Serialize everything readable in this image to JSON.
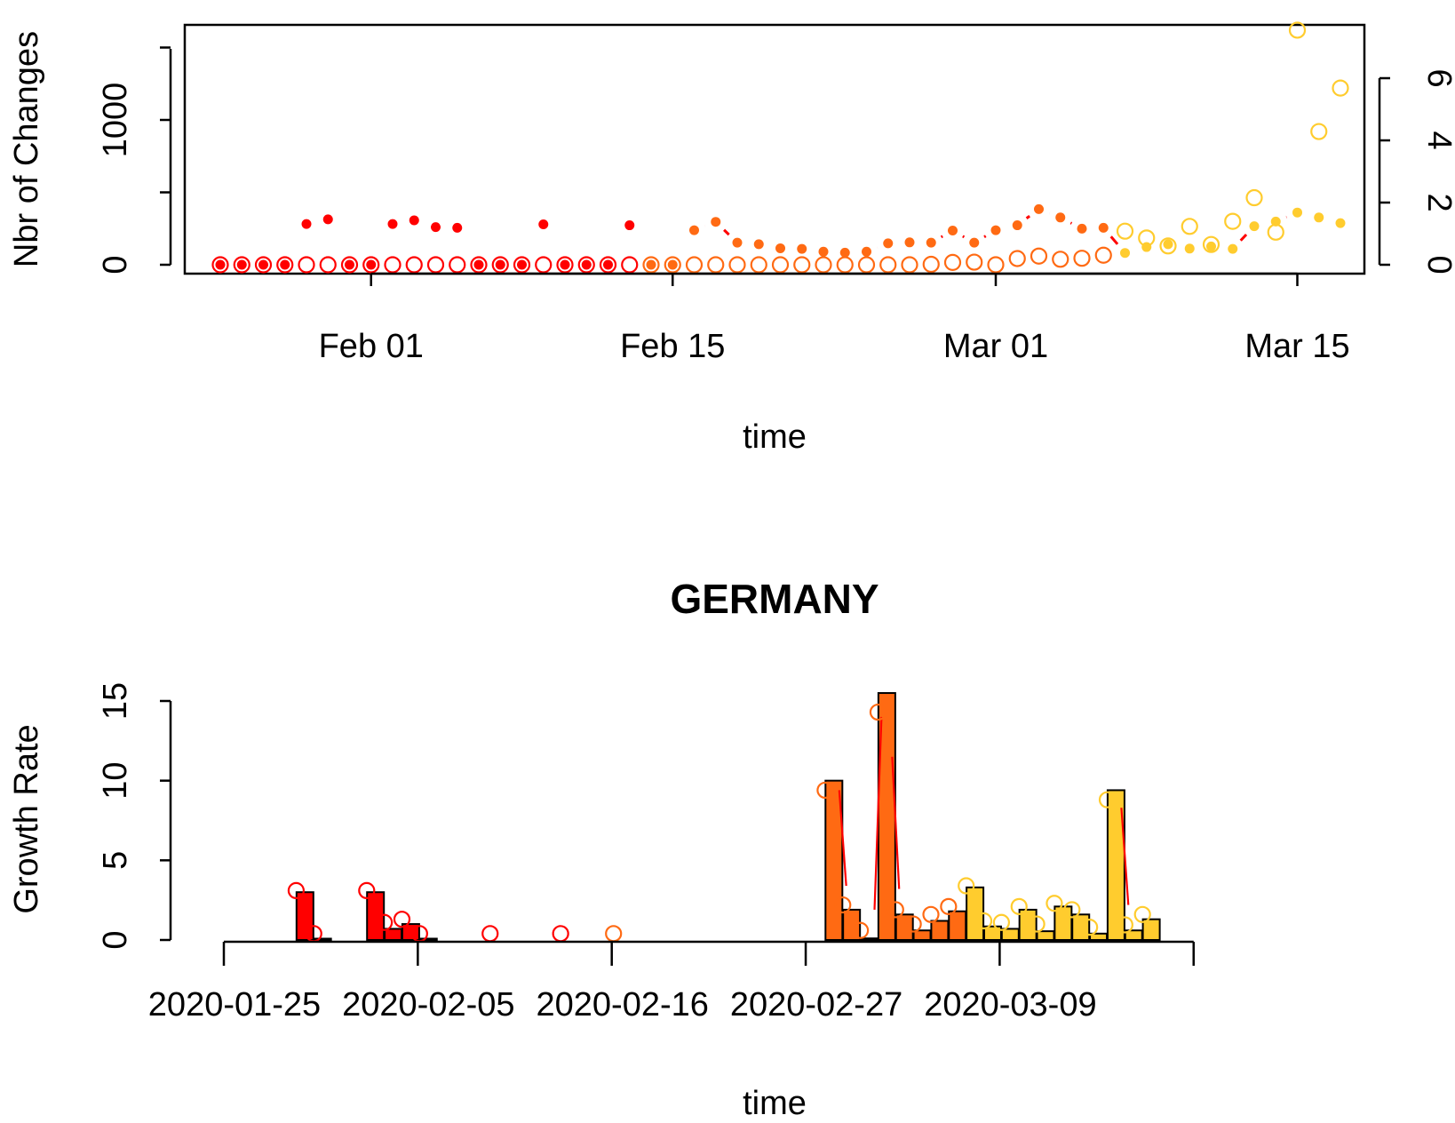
{
  "colors": {
    "red": "#ff0000",
    "orange": "#ff6a13",
    "yellow": "#ffcc2e",
    "axis": "#000000"
  },
  "chart_data": [
    {
      "type": "scatter",
      "title": "",
      "xlabel": "time",
      "ylabel": "Nbr of Changes",
      "y2label": "",
      "start_date": "2020-01-25",
      "x_ticks": [
        {
          "label": "Feb 01",
          "day": 7
        },
        {
          "label": "Feb 15",
          "day": 21
        },
        {
          "label": "Mar 01",
          "day": 36
        },
        {
          "label": "Mar 15",
          "day": 50
        }
      ],
      "y_ticks": [
        0,
        500,
        1000
      ],
      "y_tick_labels": [
        "0",
        "1000"
      ],
      "y2_ticks": [
        0,
        2,
        4,
        6
      ],
      "ylim": [
        0,
        1500
      ],
      "y2lim": [
        0,
        6
      ],
      "series": [
        {
          "role": "daily changes (open circles, left axis)",
          "values": [
            0,
            0,
            0,
            0,
            0,
            0,
            0,
            0,
            0,
            0,
            0,
            0,
            0,
            0,
            0,
            0,
            0,
            0,
            0,
            0,
            0,
            0,
            0,
            0,
            0,
            0,
            0,
            0,
            0,
            0,
            0,
            0,
            0,
            3,
            16,
            18,
            0,
            43,
            60,
            38,
            45,
            66,
            232,
            185,
            130,
            265,
            140,
            300,
            463,
            225,
            1620,
            920,
            1220
          ]
        },
        {
          "role": "log of cumulative cases (filled dots, right axis)",
          "values": [
            0,
            0,
            0,
            0,
            1.31,
            1.46,
            0,
            0,
            1.31,
            1.43,
            1.21,
            1.19,
            0,
            0,
            0,
            1.3,
            0,
            0,
            0,
            1.27,
            0,
            0,
            1.11,
            1.38,
            0.71,
            0.66,
            0.53,
            0.51,
            0.42,
            0.39,
            0.42,
            0.69,
            0.72,
            0.71,
            1.1,
            0.71,
            1.11,
            1.27,
            1.79,
            1.52,
            1.16,
            1.19,
            0.38,
            0.57,
            0.66,
            0.52,
            0.59,
            0.51,
            1.24,
            1.39,
            1.68,
            1.52,
            1.34
          ]
        }
      ]
    },
    {
      "type": "bar",
      "title": "GERMANY",
      "xlabel": "time",
      "ylabel": "Growth Rate",
      "start_date": "2020-01-25",
      "x_ticks": [
        {
          "label": "2020-01-25",
          "day": 0
        },
        {
          "label": "2020-02-05",
          "day": 11
        },
        {
          "label": "2020-02-16",
          "day": 22
        },
        {
          "label": "2020-02-27",
          "day": 33
        },
        {
          "label": "2020-03-09",
          "day": 44
        },
        {
          "label": "",
          "day": 55
        }
      ],
      "y_ticks": [
        0,
        5,
        10,
        15
      ],
      "ylim": [
        0,
        15
      ],
      "series": [
        {
          "role": "growth rate bars",
          "values": [
            0,
            0,
            0,
            0,
            3.0,
            0.05,
            0,
            0,
            3.0,
            0.7,
            1.0,
            0.05,
            0,
            0,
            0,
            0,
            0,
            0,
            0,
            0,
            0,
            0,
            0,
            0,
            0,
            0,
            0,
            0,
            0,
            0,
            0,
            0,
            0,
            0,
            10.0,
            1.9,
            0.1,
            15.5,
            1.6,
            0.6,
            1.2,
            1.8,
            3.3,
            0.85,
            0.7,
            1.9,
            0.55,
            2.1,
            1.6,
            0.4,
            9.4,
            0.6,
            1.3
          ]
        },
        {
          "role": "growth rate points",
          "values": [
            null,
            null,
            null,
            null,
            3.1,
            0.4,
            null,
            null,
            3.1,
            1.1,
            1.3,
            0.4,
            null,
            null,
            null,
            0.4,
            null,
            null,
            null,
            0.4,
            null,
            null,
            0.4,
            null,
            null,
            null,
            null,
            null,
            null,
            null,
            null,
            null,
            null,
            null,
            9.4,
            2.2,
            0.6,
            14.3,
            1.9,
            1.0,
            1.6,
            2.1,
            3.4,
            1.2,
            1.1,
            2.1,
            1.0,
            2.3,
            1.9,
            0.8,
            8.8,
            0.95,
            1.6
          ]
        }
      ]
    }
  ]
}
